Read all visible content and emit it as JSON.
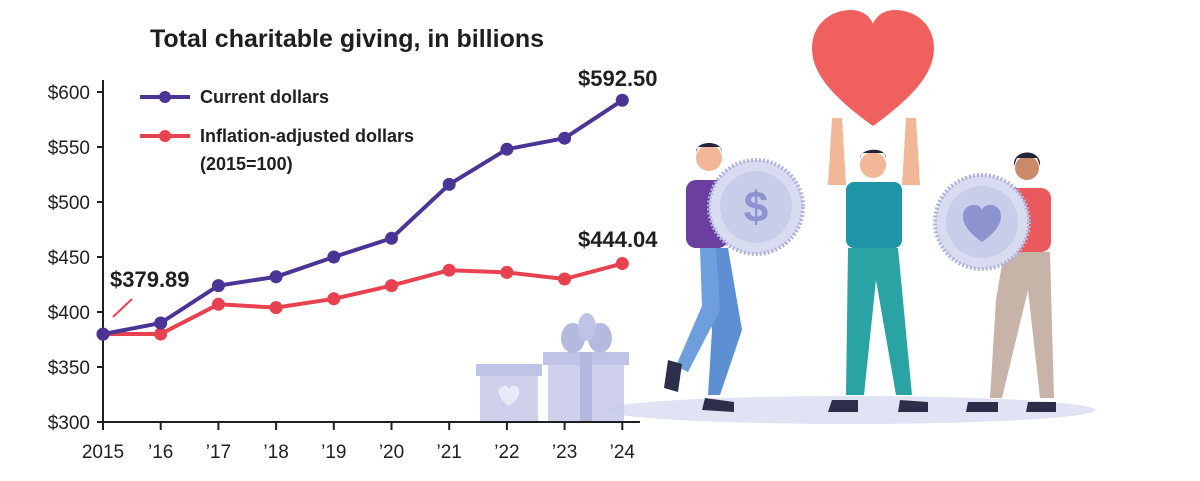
{
  "chart_data": {
    "type": "line",
    "title": "Total charitable giving, in billions",
    "x": [
      "2015",
      "’16",
      "’17",
      "’18",
      "’19",
      "’20",
      "’21",
      "’22",
      "’23",
      "’24"
    ],
    "y_ticks": [
      "$300",
      "$350",
      "$400",
      "$450",
      "$500",
      "$550",
      "$600"
    ],
    "ylim": [
      300,
      600
    ],
    "grid": false,
    "legend_position": "top-left",
    "series": [
      {
        "name": "Current dollars",
        "color": "#4a3596",
        "values": [
          379.89,
          390,
          424,
          432,
          450,
          467,
          516,
          548,
          558,
          592.5
        ]
      },
      {
        "name": "Inflation-adjusted dollars (2015=100)",
        "name_lines": [
          "Inflation-adjusted dollars",
          "(2015=100)"
        ],
        "color": "#e8414f",
        "values": [
          379.89,
          380,
          407,
          404,
          412,
          424,
          438,
          436,
          430,
          444.04
        ]
      }
    ],
    "annotations": [
      "$592.50",
      "$444.04",
      "$379.89"
    ]
  },
  "colors": {
    "axis": "#1f1f1f",
    "heart": "#f0605f",
    "coin": "#d9dcf0",
    "gift": "#c9ccea",
    "shadow": "#dfe3f3"
  },
  "icons": [
    "heart-icon",
    "dollar-coin-icon",
    "heart-coin-icon",
    "gift-box-icon",
    "person-icon"
  ]
}
